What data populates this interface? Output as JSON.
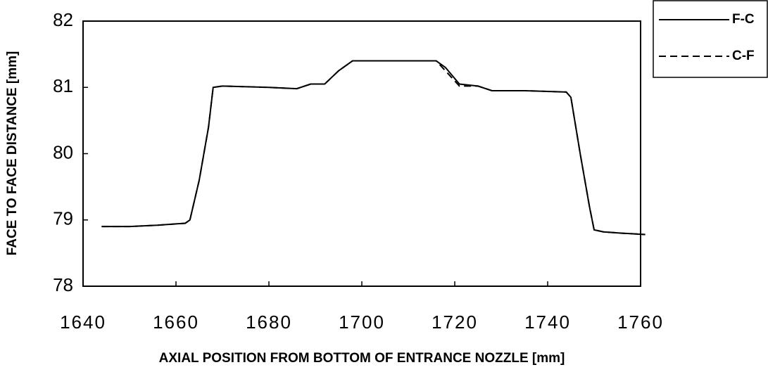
{
  "chart_data": {
    "type": "line",
    "x_label": "AXIAL POSITION FROM BOTTOM OF ENTRANCE NOZZLE [mm]",
    "y_label": "FACE TO FACE DISTANCE [mm]",
    "xlim": [
      1640,
      1760
    ],
    "xticks": [
      1640,
      1660,
      1680,
      1700,
      1720,
      1740,
      1760
    ],
    "ylim": [
      78,
      82
    ],
    "yticks": [
      78,
      79,
      80,
      81,
      82
    ],
    "grid": false,
    "legend": "upper right",
    "x": [
      1644,
      1650,
      1656,
      1662,
      1663,
      1665,
      1667,
      1668,
      1670,
      1680,
      1686,
      1689,
      1692,
      1695,
      1698,
      1705,
      1716,
      1718,
      1721,
      1725,
      1728,
      1735,
      1744,
      1745,
      1747,
      1749,
      1750,
      1752,
      1756,
      1761
    ],
    "series": [
      {
        "name": "F-C",
        "color": "#000000",
        "linestyle": "solid",
        "values": [
          78.9,
          78.9,
          78.92,
          78.95,
          79.0,
          79.6,
          80.4,
          81.0,
          81.02,
          81.0,
          80.98,
          81.05,
          81.05,
          81.25,
          81.4,
          81.4,
          81.4,
          81.3,
          81.05,
          81.02,
          80.95,
          80.95,
          80.93,
          80.85,
          80.0,
          79.2,
          78.85,
          78.82,
          78.8,
          78.78
        ]
      },
      {
        "name": "C-F",
        "color": "#000000",
        "linestyle": "dashed",
        "values": [
          78.9,
          78.9,
          78.92,
          78.95,
          79.0,
          79.6,
          80.4,
          81.0,
          81.02,
          81.0,
          80.98,
          81.05,
          81.05,
          81.25,
          81.4,
          81.4,
          81.4,
          81.25,
          81.02,
          81.02,
          80.95,
          80.95,
          80.93,
          80.85,
          80.0,
          79.2,
          78.85,
          78.82,
          78.8,
          78.78
        ]
      }
    ]
  }
}
